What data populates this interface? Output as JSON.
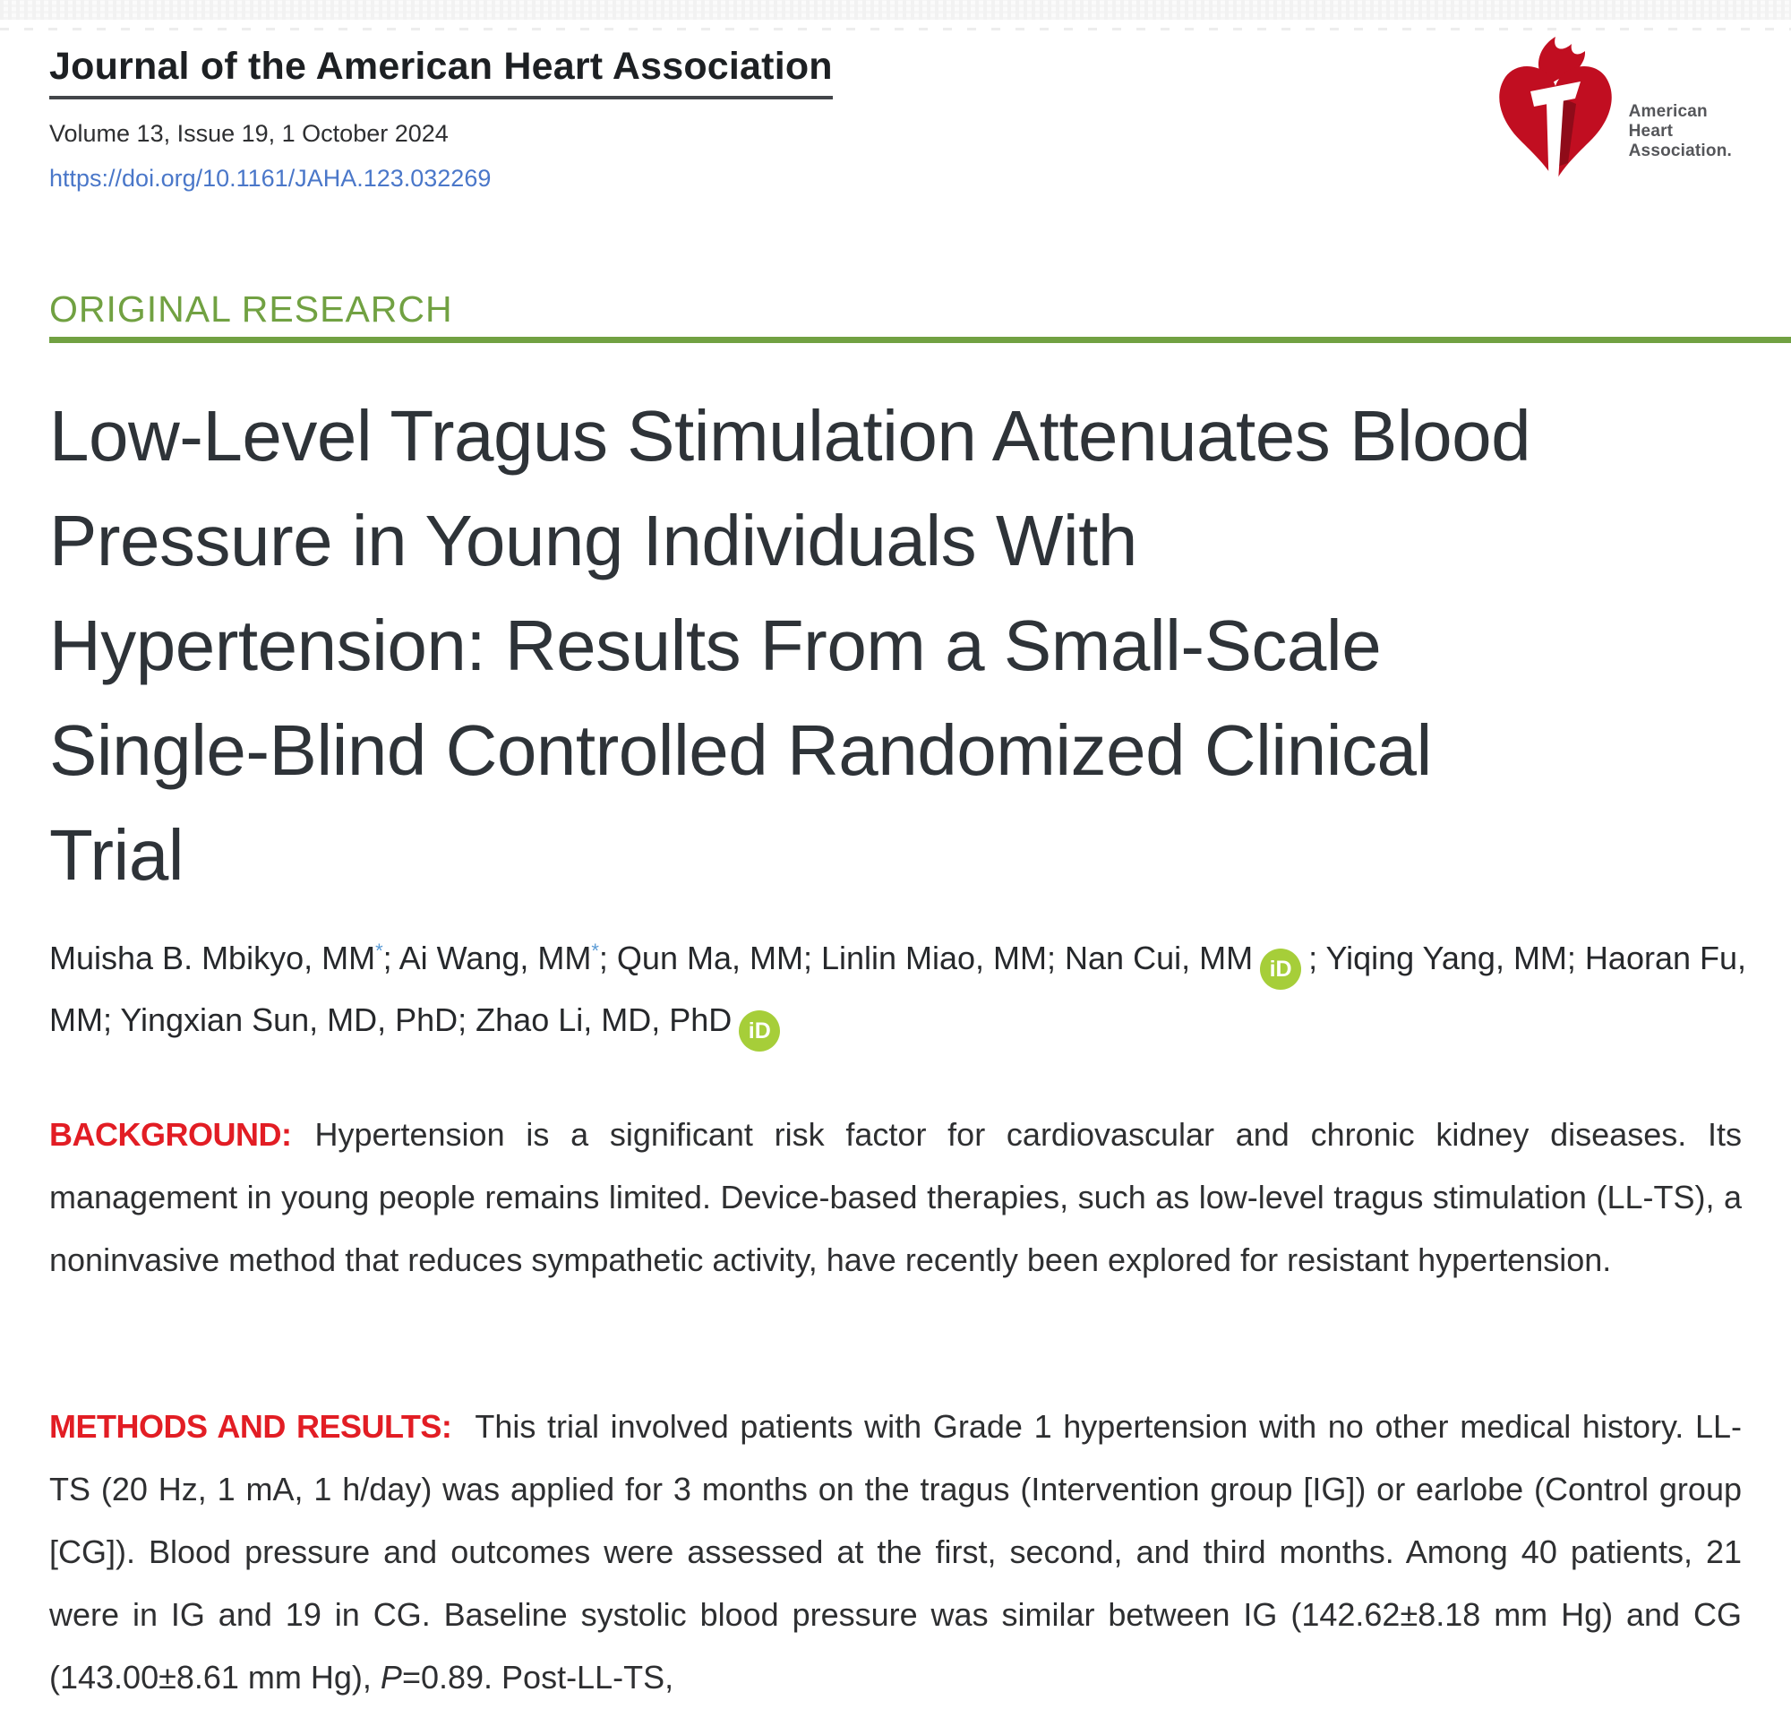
{
  "page": {
    "journal_title": "Journal of the American Heart Association",
    "issue_line": "Volume 13, Issue 19, 1 October 2024",
    "doi_url": "https://doi.org/10.1161/JAHA.123.032269"
  },
  "logo": {
    "name": "American Heart Association logo",
    "text_line1": "American",
    "text_line2": "Heart",
    "text_line3": "Association."
  },
  "article": {
    "section_label": "ORIGINAL RESEARCH",
    "title_lines": [
      "Low-Level Tragus Stimulation Attenuates Blood",
      "Pressure in Young Individuals With",
      "Hypertension: Results From a Small-Scale",
      "Single-Blind Controlled Randomized Clinical",
      "Trial"
    ]
  },
  "authors": {
    "segments": [
      {
        "t": "Muisha B. Mbikyo, MM"
      },
      {
        "t": "*",
        "c": "sup"
      },
      {
        "t": "; Ai Wang, MM"
      },
      {
        "t": "*",
        "c": "sup"
      },
      {
        "t": "; Qun Ma, MM; Linlin Miao, MM; Nan Cui, MM"
      },
      {
        "t": "iD",
        "c": "orcid"
      },
      {
        "t": "; Yiqing Yang, MM; Haoran Fu, MM; Yingxian Sun, MD, PhD; Zhao Li, MD, PhD"
      },
      {
        "t": "iD",
        "c": "orcid"
      }
    ]
  },
  "abstract": {
    "background": {
      "label": "BACKGROUND:",
      "segments": [
        {
          "t": "Hypertension is a significant risk factor for cardiovascular and chronic kidney diseases. Its management in young people remains limited. Device-based therapies, such as low-level tragus stimulation (LL-TS), a noninvasive method that reduces sympathetic activity, have recently been explored for resistant hypertension."
        }
      ]
    },
    "methods_and_results": {
      "label": "METHODS AND RESULTS:",
      "segments": [
        {
          "t": "This trial involved patients with Grade 1 hypertension with no other medical history. LL-TS (20 Hz, 1 mA, 1 h/day) was applied for 3 months on the tragus (Intervention group [IG]) or earlobe (Control group [CG]). Blood pressure and outcomes were assessed at the first, second, and third months. Among 40 patients, 21 were in IG and 19 in CG. Baseline systolic blood pressure was similar between IG (142.62±8.18 mm Hg) and CG (143.00±8.61 mm Hg), "
        },
        {
          "t": "P",
          "c": "italic"
        },
        {
          "t": "=0.89. Post-LL-TS,"
        }
      ]
    }
  },
  "colors": {
    "heart_red": "#c10e21",
    "heart_shadow_red": "#8f0b19",
    "label_red": "#e21d24",
    "accent_green": "#71a142",
    "orcid_green": "#a6ce39",
    "link_blue": "#4a77c9",
    "asterisk_blue": "#5b9bd5",
    "title_gray": "#2e3338"
  }
}
